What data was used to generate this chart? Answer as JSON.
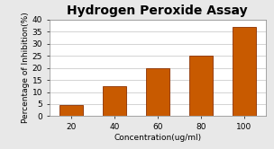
{
  "title": "Hydrogen Peroxide Assay",
  "xlabel": "Concentration(ug/ml)",
  "ylabel": "Percentage of Inhibition(%)",
  "categories": [
    20,
    40,
    60,
    80,
    100
  ],
  "values": [
    4.5,
    12.5,
    20.0,
    25.0,
    37.0
  ],
  "bar_color": "#C85A00",
  "bar_edge_color": "#8B3000",
  "ylim": [
    0,
    40
  ],
  "yticks": [
    0,
    5,
    10,
    15,
    20,
    25,
    30,
    35,
    40
  ],
  "figure_bg_color": "#e8e8e8",
  "plot_bg_color": "#ffffff",
  "title_fontsize": 10,
  "label_fontsize": 6.5,
  "tick_fontsize": 6.5,
  "grid_color": "#cccccc",
  "bar_width": 0.55
}
